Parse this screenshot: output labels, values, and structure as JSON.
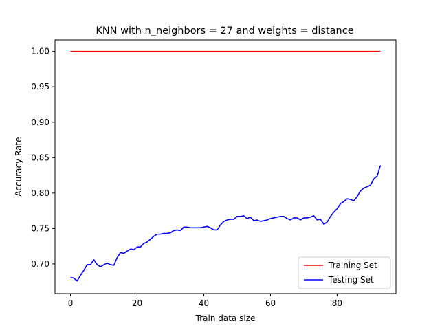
{
  "chart_data": {
    "type": "line",
    "title": "KNN with n_neighbors = 27 and weights = distance",
    "xlabel": "Train data size",
    "ylabel": "Accuracy Rate",
    "xlim": [
      -4.65,
      97.65
    ],
    "ylim": [
      0.6582,
      1.0162
    ],
    "xticks": [
      0,
      20,
      40,
      60,
      80
    ],
    "xtick_labels": [
      "0",
      "20",
      "40",
      "60",
      "80"
    ],
    "yticks": [
      0.7,
      0.75,
      0.8,
      0.85,
      0.9,
      0.95,
      1.0
    ],
    "ytick_labels": [
      "0.70",
      "0.75",
      "0.80",
      "0.85",
      "0.90",
      "0.95",
      "1.00"
    ],
    "grid": false,
    "legend_position": "bottom-right",
    "series": [
      {
        "name": "Training Set",
        "color": "#ff0000",
        "x": [
          0,
          93
        ],
        "y": [
          1.0,
          1.0
        ]
      },
      {
        "name": "Testing Set",
        "color": "#0000ff",
        "x": [
          0,
          1,
          2,
          3,
          4,
          5,
          6,
          7,
          8,
          9,
          10,
          11,
          12,
          13,
          14,
          15,
          16,
          17,
          18,
          19,
          20,
          21,
          22,
          23,
          24,
          25,
          26,
          27,
          28,
          29,
          30,
          31,
          32,
          33,
          34,
          35,
          36,
          37,
          38,
          39,
          40,
          41,
          42,
          43,
          44,
          45,
          46,
          47,
          48,
          49,
          50,
          51,
          52,
          53,
          54,
          55,
          56,
          57,
          58,
          59,
          60,
          61,
          62,
          63,
          64,
          65,
          66,
          67,
          68,
          69,
          70,
          71,
          72,
          73,
          74,
          75,
          76,
          77,
          78,
          79,
          80,
          81,
          82,
          83,
          84,
          85,
          86,
          87,
          88,
          89,
          90,
          91,
          92,
          93
        ],
        "y": [
          0.681,
          0.68,
          0.676,
          0.684,
          0.691,
          0.699,
          0.699,
          0.706,
          0.699,
          0.696,
          0.699,
          0.701,
          0.699,
          0.698,
          0.709,
          0.716,
          0.715,
          0.718,
          0.721,
          0.72,
          0.724,
          0.724,
          0.729,
          0.731,
          0.735,
          0.739,
          0.742,
          0.742,
          0.743,
          0.743,
          0.744,
          0.747,
          0.748,
          0.747,
          0.752,
          0.752,
          0.751,
          0.751,
          0.751,
          0.751,
          0.752,
          0.753,
          0.751,
          0.748,
          0.748,
          0.755,
          0.76,
          0.762,
          0.763,
          0.763,
          0.767,
          0.767,
          0.768,
          0.764,
          0.766,
          0.761,
          0.762,
          0.76,
          0.761,
          0.762,
          0.764,
          0.765,
          0.766,
          0.767,
          0.767,
          0.764,
          0.762,
          0.765,
          0.765,
          0.762,
          0.765,
          0.765,
          0.766,
          0.768,
          0.762,
          0.763,
          0.756,
          0.759,
          0.767,
          0.773,
          0.778,
          0.785,
          0.788,
          0.792,
          0.791,
          0.789,
          0.795,
          0.803,
          0.807,
          0.809,
          0.811,
          0.82,
          0.824,
          0.839
        ]
      }
    ]
  }
}
